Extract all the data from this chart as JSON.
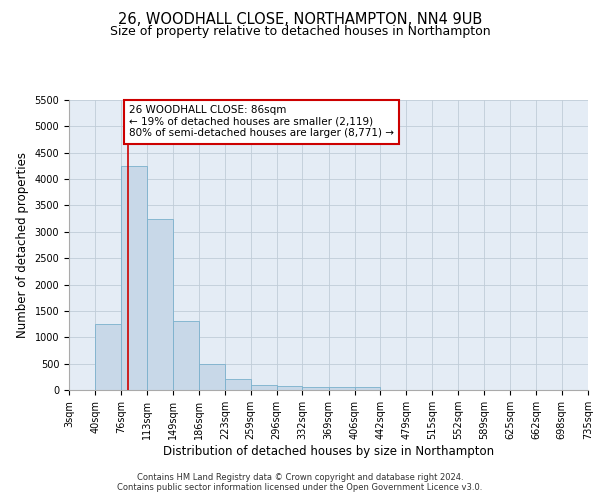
{
  "title_line1": "26, WOODHALL CLOSE, NORTHAMPTON, NN4 9UB",
  "title_line2": "Size of property relative to detached houses in Northampton",
  "xlabel": "Distribution of detached houses by size in Northampton",
  "ylabel": "Number of detached properties",
  "bin_labels": [
    "3sqm",
    "40sqm",
    "76sqm",
    "113sqm",
    "149sqm",
    "186sqm",
    "223sqm",
    "259sqm",
    "296sqm",
    "332sqm",
    "369sqm",
    "406sqm",
    "442sqm",
    "479sqm",
    "515sqm",
    "552sqm",
    "589sqm",
    "625sqm",
    "662sqm",
    "698sqm",
    "735sqm"
  ],
  "bin_edges": [
    3,
    40,
    76,
    113,
    149,
    186,
    223,
    259,
    296,
    332,
    369,
    406,
    442,
    479,
    515,
    552,
    589,
    625,
    662,
    698,
    735
  ],
  "bar_heights": [
    0,
    1250,
    4250,
    3250,
    1300,
    500,
    200,
    100,
    75,
    60,
    55,
    50,
    0,
    0,
    0,
    0,
    0,
    0,
    0,
    0
  ],
  "bar_color": "#c8d8e8",
  "bar_edgecolor": "#7ab0cc",
  "grid_color": "#c0ccd8",
  "bg_color": "#e4ecf5",
  "vline_x": 86,
  "vline_color": "#cc0000",
  "annotation_text": "26 WOODHALL CLOSE: 86sqm\n← 19% of detached houses are smaller (2,119)\n80% of semi-detached houses are larger (8,771) →",
  "annotation_box_color": "#ffffff",
  "annotation_box_edgecolor": "#cc0000",
  "ylim": [
    0,
    5500
  ],
  "yticks": [
    0,
    500,
    1000,
    1500,
    2000,
    2500,
    3000,
    3500,
    4000,
    4500,
    5000,
    5500
  ],
  "footer_line1": "Contains HM Land Registry data © Crown copyright and database right 2024.",
  "footer_line2": "Contains public sector information licensed under the Open Government Licence v3.0.",
  "title_fontsize": 10.5,
  "subtitle_fontsize": 9,
  "axis_label_fontsize": 8.5,
  "tick_fontsize": 7,
  "annotation_fontsize": 7.5,
  "footer_fontsize": 6
}
